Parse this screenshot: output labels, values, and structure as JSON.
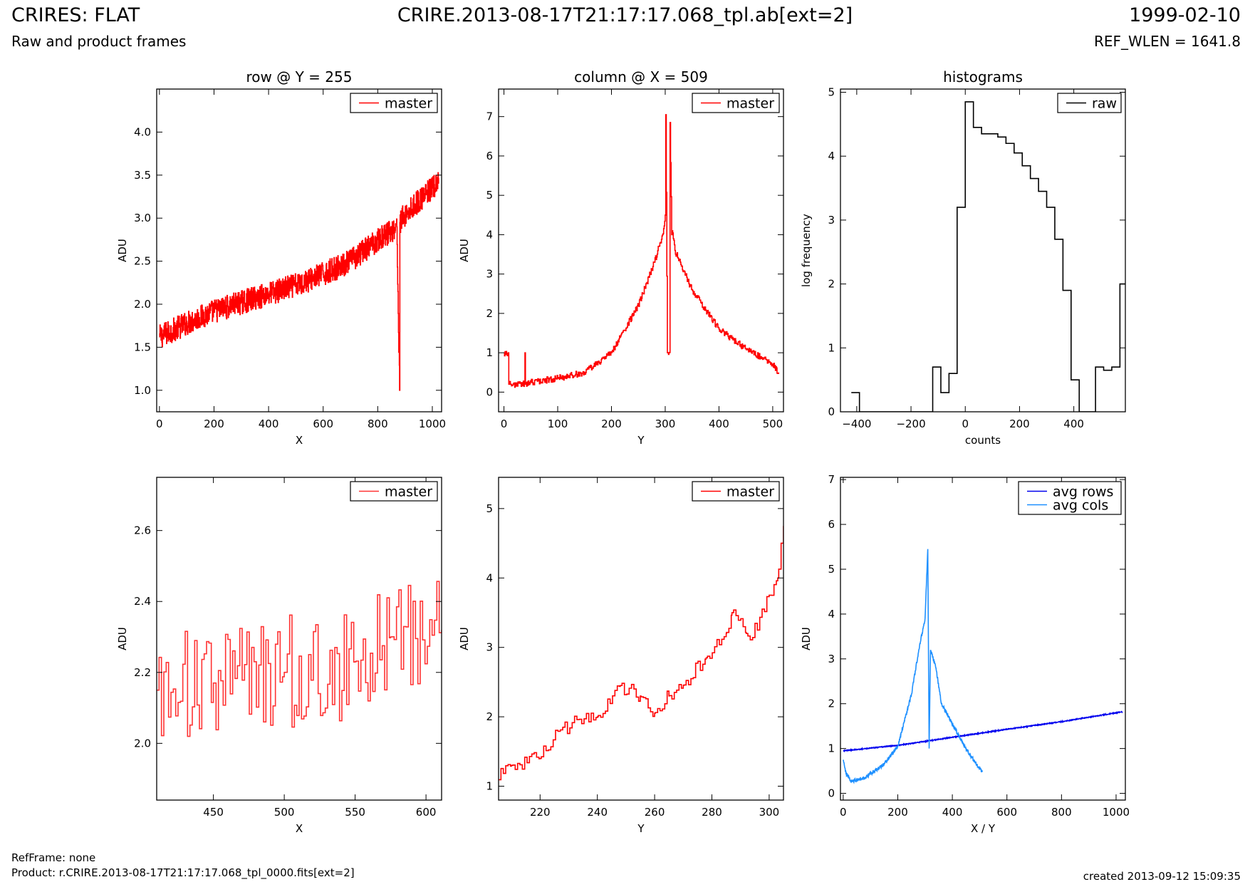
{
  "header": {
    "title": "CRIRES: FLAT",
    "subtitle": "Raw and product frames",
    "file": "CRIRE.2013-08-17T21:17:17.068_tpl.ab[ext=2]",
    "date": "1999-02-10",
    "ref_wlen": "REF_WLEN = 1641.8"
  },
  "footer": {
    "ref_frame": "RefFrame: none",
    "product": "Product: r.CRIRE.2013-08-17T21:17:17.068_tpl_0000.fits[ext=2]",
    "created": "created 2013-09-12 15:09:35"
  },
  "colors": {
    "master": "#ff0000",
    "raw": "#000000",
    "avg_rows": "#0000ee",
    "avg_cols": "#1e90ff"
  },
  "chart_data": [
    {
      "type": "line",
      "title": "row @ Y = 255",
      "xlabel": "X",
      "ylabel": "ADU",
      "xlim": [
        -10,
        1034
      ],
      "ylim": [
        0.75,
        4.5
      ],
      "xticks": [
        0,
        200,
        400,
        600,
        800,
        1000
      ],
      "yticks": [
        1.0,
        1.5,
        2.0,
        2.5,
        3.0,
        3.5,
        4.0
      ],
      "legend": "top-right",
      "series": [
        {
          "name": "master",
          "color": "#ff0000",
          "style": "step",
          "noise": 0.14,
          "x": [
            0,
            100,
            200,
            300,
            400,
            500,
            600,
            700,
            800,
            870,
            880,
            881,
            890,
            950,
            1000,
            1023
          ],
          "y": [
            1.62,
            1.78,
            1.92,
            2.02,
            2.12,
            2.22,
            2.35,
            2.5,
            2.75,
            2.9,
            1.0,
            2.95,
            3.0,
            3.2,
            3.35,
            3.4
          ]
        }
      ]
    },
    {
      "type": "line",
      "title": "column @ X = 509",
      "xlabel": "Y",
      "ylabel": "ADU",
      "xlim": [
        -10,
        520
      ],
      "ylim": [
        -0.5,
        7.7
      ],
      "xticks": [
        0,
        100,
        200,
        300,
        400,
        500
      ],
      "yticks": [
        0,
        1,
        2,
        3,
        4,
        5,
        6,
        7
      ],
      "legend": "top-right",
      "series": [
        {
          "name": "master",
          "color": "#ff0000",
          "style": "step",
          "noise": 0.08,
          "x": [
            0,
            8,
            9,
            12,
            38,
            39,
            40,
            50,
            100,
            150,
            200,
            250,
            280,
            295,
            300,
            301,
            304,
            305,
            308,
            309,
            312,
            313,
            318,
            330,
            350,
            400,
            450,
            500,
            511
          ],
          "y": [
            1.0,
            1.0,
            0.2,
            0.2,
            0.2,
            1.0,
            0.2,
            0.25,
            0.35,
            0.5,
            1.0,
            2.2,
            3.3,
            4.0,
            4.5,
            7.05,
            1.0,
            1.0,
            1.0,
            6.85,
            4.0,
            4.1,
            3.6,
            3.2,
            2.6,
            1.6,
            1.1,
            0.7,
            0.5
          ]
        }
      ]
    },
    {
      "type": "line",
      "title": "histograms",
      "xlabel": "counts",
      "ylabel": "log frequency",
      "xlim": [
        -460,
        590
      ],
      "ylim": [
        0,
        5.05
      ],
      "xticks": [
        -400,
        -200,
        0,
        200,
        400
      ],
      "yticks": [
        0,
        1,
        2,
        3,
        4,
        5
      ],
      "legend": "top-right",
      "series": [
        {
          "name": "raw",
          "color": "#000000",
          "style": "steppost",
          "x": [
            -420,
            -390,
            -120,
            -90,
            -60,
            -30,
            0,
            30,
            60,
            90,
            120,
            150,
            180,
            210,
            240,
            270,
            300,
            330,
            360,
            390,
            420,
            480,
            510,
            540,
            570,
            600
          ],
          "y": [
            0.3,
            0,
            0.7,
            0.3,
            0.6,
            3.2,
            4.85,
            4.45,
            4.35,
            4.35,
            4.3,
            4.2,
            4.05,
            3.85,
            3.65,
            3.45,
            3.2,
            2.7,
            1.9,
            0.5,
            0,
            0.7,
            0.65,
            0.7,
            2.0,
            2.0
          ]
        }
      ]
    },
    {
      "type": "line",
      "title": "",
      "xlabel": "X",
      "ylabel": "ADU",
      "xlim": [
        410,
        611
      ],
      "ylim": [
        1.84,
        2.75
      ],
      "xticks": [
        450,
        500,
        550,
        600
      ],
      "yticks": [
        2.0,
        2.2,
        2.4,
        2.6
      ],
      "legend": "top-right",
      "series": [
        {
          "name": "master",
          "color": "#ff3333",
          "style": "step",
          "noise": 0.16,
          "x": [
            410,
            450,
            500,
            550,
            575,
            611
          ],
          "y": [
            2.15,
            2.17,
            2.2,
            2.23,
            2.3,
            2.32
          ]
        }
      ]
    },
    {
      "type": "line",
      "title": "",
      "xlabel": "Y",
      "ylabel": "ADU",
      "xlim": [
        205.5,
        305
      ],
      "ylim": [
        0.8,
        5.45
      ],
      "xticks": [
        220,
        240,
        260,
        280,
        300
      ],
      "yticks": [
        1,
        2,
        3,
        4,
        5
      ],
      "legend": "top-right",
      "series": [
        {
          "name": "master",
          "color": "#ff0000",
          "style": "step",
          "noise": 0.11,
          "x": [
            205,
            210,
            220,
            228,
            240,
            248,
            255,
            260,
            265,
            270,
            278,
            285,
            287,
            292,
            296,
            300,
            303,
            305
          ],
          "y": [
            1.15,
            1.3,
            1.4,
            1.85,
            2.0,
            2.45,
            2.3,
            2.05,
            2.3,
            2.45,
            2.85,
            3.2,
            3.5,
            3.2,
            3.25,
            3.75,
            4.0,
            4.75
          ]
        }
      ]
    },
    {
      "type": "line",
      "title": "",
      "xlabel": "X / Y",
      "ylabel": "ADU",
      "xlim": [
        -10,
        1034
      ],
      "ylim": [
        -0.15,
        7.05
      ],
      "xticks": [
        0,
        200,
        400,
        600,
        800,
        1000
      ],
      "yticks": [
        0,
        1,
        2,
        3,
        4,
        5,
        6,
        7
      ],
      "legend": "top-right",
      "series": [
        {
          "name": "avg rows",
          "color": "#0000ee",
          "style": "line",
          "noise": 0.01,
          "x": [
            0,
            200,
            400,
            600,
            800,
            1023
          ],
          "y": [
            0.95,
            1.07,
            1.25,
            1.43,
            1.6,
            1.82
          ]
        },
        {
          "name": "avg cols",
          "color": "#1e90ff",
          "style": "line",
          "noise": 0.04,
          "x": [
            0,
            10,
            30,
            80,
            150,
            200,
            250,
            280,
            300,
            310,
            315,
            320,
            340,
            360,
            400,
            450,
            500,
            511
          ],
          "y": [
            0.75,
            0.45,
            0.27,
            0.35,
            0.65,
            1.05,
            2.2,
            3.3,
            3.9,
            5.45,
            1.0,
            3.2,
            2.8,
            2.0,
            1.55,
            1.0,
            0.55,
            0.5
          ]
        }
      ]
    }
  ]
}
